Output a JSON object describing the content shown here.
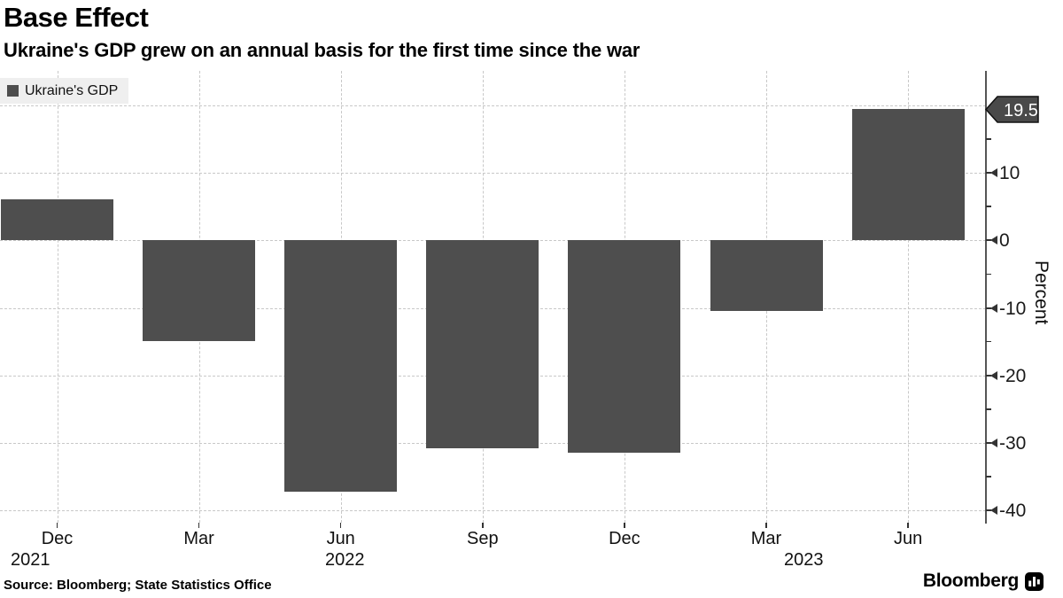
{
  "header": {
    "title": "Base Effect",
    "subtitle": "Ukraine's GDP grew on an annual basis for the first time since the war"
  },
  "legend": {
    "label": "Ukraine's GDP"
  },
  "annotation": {
    "label": "19.5"
  },
  "axes": {
    "y_title": "Percent"
  },
  "footer": {
    "source": "Source: Bloomberg; State Statistics Office",
    "brand": "Bloomberg"
  },
  "colors": {
    "bar": "#4e4e4e",
    "grid": "#c8c8c8",
    "axis": "#555555",
    "tick": "#333333",
    "tag_bg": "#4a4a4a",
    "tag_border": "#111111",
    "tag_text": "#ffffff",
    "legend_bg": "#efefef",
    "text": "#000000"
  },
  "chart_data": {
    "type": "bar",
    "title": "Base Effect",
    "subtitle": "Ukraine's GDP grew on an annual basis for the first time since the war",
    "series_name": "Ukraine's GDP",
    "categories": [
      "Dec 2021",
      "Mar 2022",
      "Jun 2022",
      "Sep 2022",
      "Dec 2022",
      "Mar 2023",
      "Jun 2023"
    ],
    "month_labels": [
      "Dec",
      "Mar",
      "Jun",
      "Sep",
      "Dec",
      "Mar",
      "Jun"
    ],
    "year_labels": [
      "2021",
      "2022",
      "2023"
    ],
    "values": [
      6.1,
      -14.9,
      -37.2,
      -30.8,
      -31.4,
      -10.5,
      19.5
    ],
    "xlabel": "",
    "ylabel": "Percent",
    "ylim": [
      -41.8,
      25.1
    ],
    "y_tick_labels": [
      10,
      0,
      -10,
      -20,
      -30,
      -40
    ],
    "y_grid_values": [
      20,
      10,
      0,
      -10,
      -20,
      -30,
      -40
    ],
    "y_minor_ticks": [
      15,
      5,
      -5,
      -15,
      -25,
      -35
    ],
    "grid": "dashed",
    "legend_position": "top-left",
    "annotation_value": 19.5,
    "annotation_label": "19.5"
  }
}
